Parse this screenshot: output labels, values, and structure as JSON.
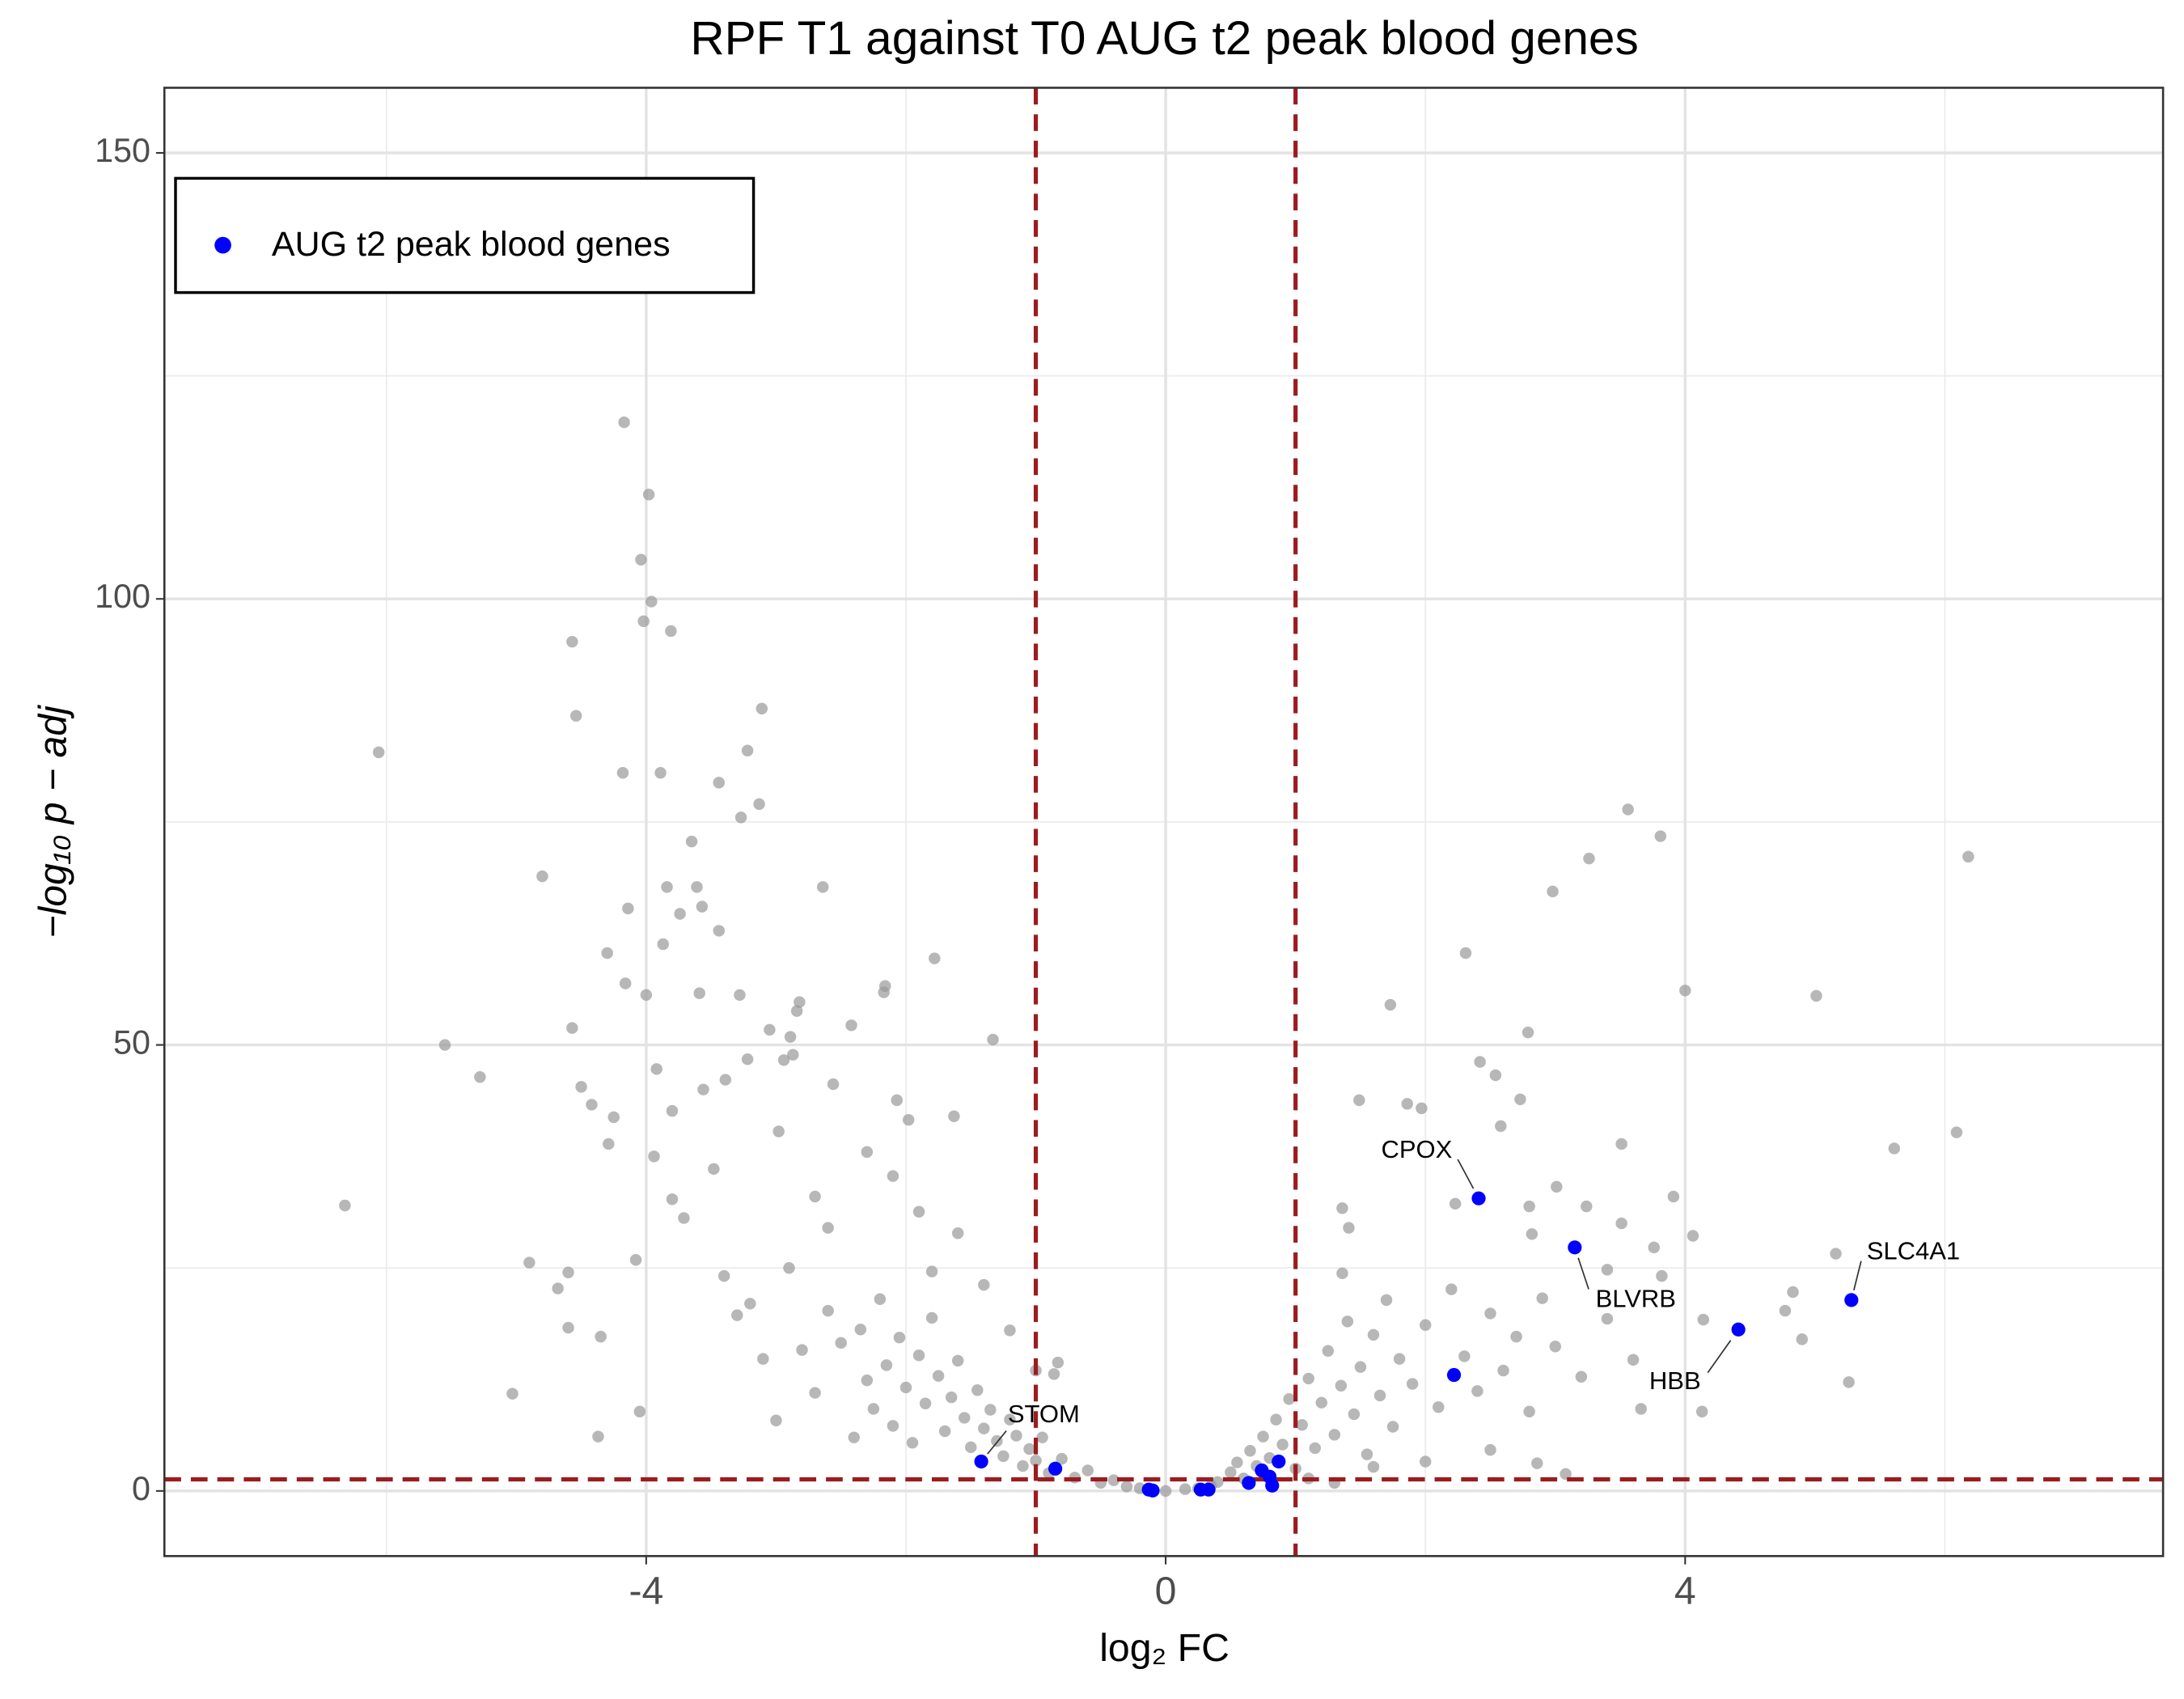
{
  "chart_data": {
    "type": "scatter",
    "title": "RPF T1 against T0 AUG t2 peak blood genes",
    "x_label": "log₂ FC",
    "y_label": "−log₁₀ p − adj",
    "xlim": [
      -7.71,
      7.68
    ],
    "ylim": [
      -7.3,
      157.3
    ],
    "xticks": [
      -4,
      0,
      4
    ],
    "yticks": [
      0,
      50,
      100,
      150
    ],
    "x_minor_ticks": [
      -6,
      -2,
      2,
      6
    ],
    "y_minor_ticks": [
      25,
      75,
      125
    ],
    "grid": true,
    "legend": "top-left",
    "thresholds": {
      "x": [
        -1,
        1
      ],
      "y": 1.3,
      "color": "#9b1c1f"
    },
    "background_points": {
      "color": "#999999",
      "x": [
        -6.32,
        -6.06,
        -5.55,
        -5.28,
        -5.03,
        -4.9,
        -4.8,
        -4.68,
        -4.6,
        -4.6,
        -4.57,
        -4.54,
        -4.57,
        -4.5,
        -4.42,
        -4.37,
        -4.35,
        -4.3,
        -4.29,
        -4.25,
        -4.18,
        -4.17,
        -4.16,
        -4.14,
        -4.08,
        -4.05,
        -4.04,
        -4.02,
        -4.0,
        -3.98,
        -3.96,
        -3.94,
        -3.92,
        -3.89,
        -3.87,
        -3.84,
        -3.81,
        -3.8,
        -3.8,
        -3.74,
        -3.71,
        -3.65,
        -3.61,
        -3.59,
        -3.57,
        -3.56,
        -3.48,
        -3.44,
        -3.44,
        -3.39,
        -3.28,
        -3.27,
        -3.22,
        -3.22,
        -3.13,
        -3.11,
        -3.05,
        -2.98,
        -2.94,
        -2.89,
        -2.87,
        -2.84,
        -2.82,
        -2.64,
        -2.56,
        -2.42,
        -2.17,
        -2.16,
        -2.07,
        -1.98,
        -1.78,
        -1.63,
        -1.33,
        -0.83,
        -0.86,
        -3.4,
        -3.3,
        -3.2,
        -3.1,
        -3.0,
        -2.9,
        -2.8,
        -2.7,
        -2.6,
        -2.5,
        -2.4,
        -2.35,
        -2.3,
        -2.25,
        -2.2,
        -2.15,
        -2.1,
        -2.05,
        -2.0,
        -1.95,
        -1.9,
        -1.85,
        -1.8,
        -1.75,
        -1.7,
        -1.65,
        -1.6,
        -1.55,
        -1.5,
        -1.45,
        -1.4,
        -1.35,
        -1.3,
        -1.25,
        -1.2,
        -1.15,
        -1.1,
        -1.05,
        -1.0,
        -0.95,
        -0.9,
        -0.8,
        -0.7,
        -0.6,
        -0.5,
        -0.4,
        -0.3,
        -0.2,
        -0.1,
        0.0,
        -2.6,
        -2.1,
        -1.9,
        -1.6,
        -2.3,
        -1.4,
        -1.2,
        -1.0,
        -1.8,
        -2.7,
        1.73,
        1.49,
        1.36,
        1.41,
        1.36,
        1.86,
        1.97,
        2.23,
        2.31,
        2.42,
        2.54,
        2.58,
        2.73,
        2.79,
        2.8,
        2.82,
        2.98,
        3.01,
        3.24,
        3.26,
        3.4,
        3.51,
        3.51,
        3.56,
        3.66,
        3.76,
        3.81,
        3.82,
        3.91,
        4.0,
        4.06,
        4.13,
        4.77,
        4.83,
        4.9,
        5.01,
        5.16,
        5.26,
        5.61,
        6.09,
        6.18,
        4.14,
        3.08,
        2.86,
        0.4,
        0.5,
        0.55,
        0.6,
        0.65,
        0.7,
        0.75,
        0.8,
        0.85,
        0.9,
        0.95,
        1.0,
        1.05,
        1.1,
        1.15,
        1.2,
        1.25,
        1.3,
        1.35,
        1.4,
        1.45,
        1.5,
        1.55,
        1.6,
        1.65,
        1.7,
        1.75,
        1.8,
        1.9,
        2.0,
        2.1,
        2.2,
        2.3,
        2.4,
        2.5,
        2.6,
        2.7,
        2.8,
        2.9,
        3.0,
        3.2,
        3.4,
        3.6,
        1.1,
        1.3,
        1.6,
        2.0,
        2.5,
        0.35,
        0.25,
        0.15
      ],
      "y": [
        32.0,
        82.8,
        50.0,
        46.4,
        10.9,
        25.6,
        68.9,
        22.7,
        24.5,
        18.3,
        51.9,
        86.9,
        95.2,
        45.3,
        43.3,
        6.1,
        17.3,
        60.3,
        38.9,
        41.9,
        80.5,
        119.8,
        56.9,
        65.3,
        25.9,
        8.9,
        104.4,
        97.5,
        55.6,
        111.7,
        99.7,
        37.5,
        47.3,
        80.5,
        61.3,
        67.7,
        96.4,
        42.6,
        32.7,
        64.7,
        30.6,
        72.8,
        67.7,
        55.8,
        65.5,
        45.0,
        36.1,
        62.8,
        79.4,
        46.1,
        55.6,
        75.5,
        83.0,
        48.4,
        77.0,
        87.7,
        51.7,
        40.3,
        48.3,
        50.9,
        48.9,
        53.8,
        54.8,
        67.7,
        45.6,
        52.2,
        55.9,
        56.6,
        43.8,
        41.6,
        59.7,
        42.0,
        50.6,
        14.4,
        13.1,
        24.1,
        19.7,
        21.0,
        14.8,
        7.9,
        25.0,
        15.8,
        11.0,
        20.2,
        16.6,
        6.0,
        18.1,
        12.4,
        9.2,
        21.5,
        14.1,
        7.3,
        17.2,
        11.6,
        5.4,
        15.2,
        9.8,
        19.4,
        12.9,
        6.7,
        10.5,
        14.6,
        8.2,
        4.9,
        11.3,
        7.0,
        9.1,
        5.6,
        3.9,
        8.0,
        6.2,
        2.8,
        4.7,
        3.4,
        6.0,
        2.0,
        3.6,
        1.5,
        2.3,
        0.9,
        1.2,
        0.5,
        0.3,
        0.1,
        0.0,
        29.5,
        35.3,
        31.3,
        28.9,
        38.0,
        23.1,
        18.0,
        13.5,
        24.6,
        33.0,
        54.5,
        43.8,
        31.7,
        29.5,
        24.4,
        43.4,
        42.9,
        32.2,
        60.3,
        48.1,
        46.6,
        40.9,
        43.9,
        51.4,
        31.9,
        28.8,
        67.2,
        34.1,
        31.9,
        70.9,
        24.8,
        30.0,
        38.9,
        76.4,
        9.2,
        27.3,
        73.4,
        24.1,
        33.0,
        56.1,
        28.6,
        8.9,
        20.2,
        22.3,
        17.0,
        55.5,
        26.6,
        12.2,
        38.4,
        40.2,
        71.1,
        19.2,
        1.9,
        3.1,
        1.0,
        2.1,
        3.2,
        1.4,
        4.5,
        2.8,
        6.1,
        3.7,
        8.0,
        5.2,
        10.3,
        2.5,
        7.4,
        12.6,
        4.8,
        9.9,
        15.7,
        6.3,
        11.8,
        19.0,
        8.6,
        13.9,
        4.1,
        17.5,
        10.7,
        21.4,
        7.2,
        14.8,
        12.0,
        18.6,
        9.4,
        22.6,
        15.1,
        11.2,
        19.9,
        13.5,
        17.3,
        8.9,
        21.6,
        16.2,
        12.8,
        19.3,
        14.7,
        1.4,
        0.9,
        2.7,
        3.3,
        4.6,
        0.6,
        0.3,
        0.2
      ]
    },
    "series": [
      {
        "name": "AUG t2 peak blood genes",
        "color": "#0000ff",
        "x": [
          -1.42,
          -0.85,
          -0.13,
          -0.1,
          0.27,
          0.33,
          0.64,
          0.74,
          0.8,
          0.82,
          0.87,
          2.41,
          3.15,
          4.41,
          5.28,
          2.22
        ],
        "y": [
          3.3,
          2.5,
          0.15,
          0.05,
          0.15,
          0.15,
          0.9,
          2.3,
          1.6,
          0.6,
          3.3,
          32.8,
          27.3,
          18.1,
          21.4,
          13.0
        ],
        "labels": [
          "STOM",
          null,
          null,
          null,
          null,
          null,
          null,
          null,
          null,
          null,
          null,
          "CPOX",
          "BLVRB",
          "HBB",
          "SLC4A1",
          null
        ]
      }
    ]
  }
}
